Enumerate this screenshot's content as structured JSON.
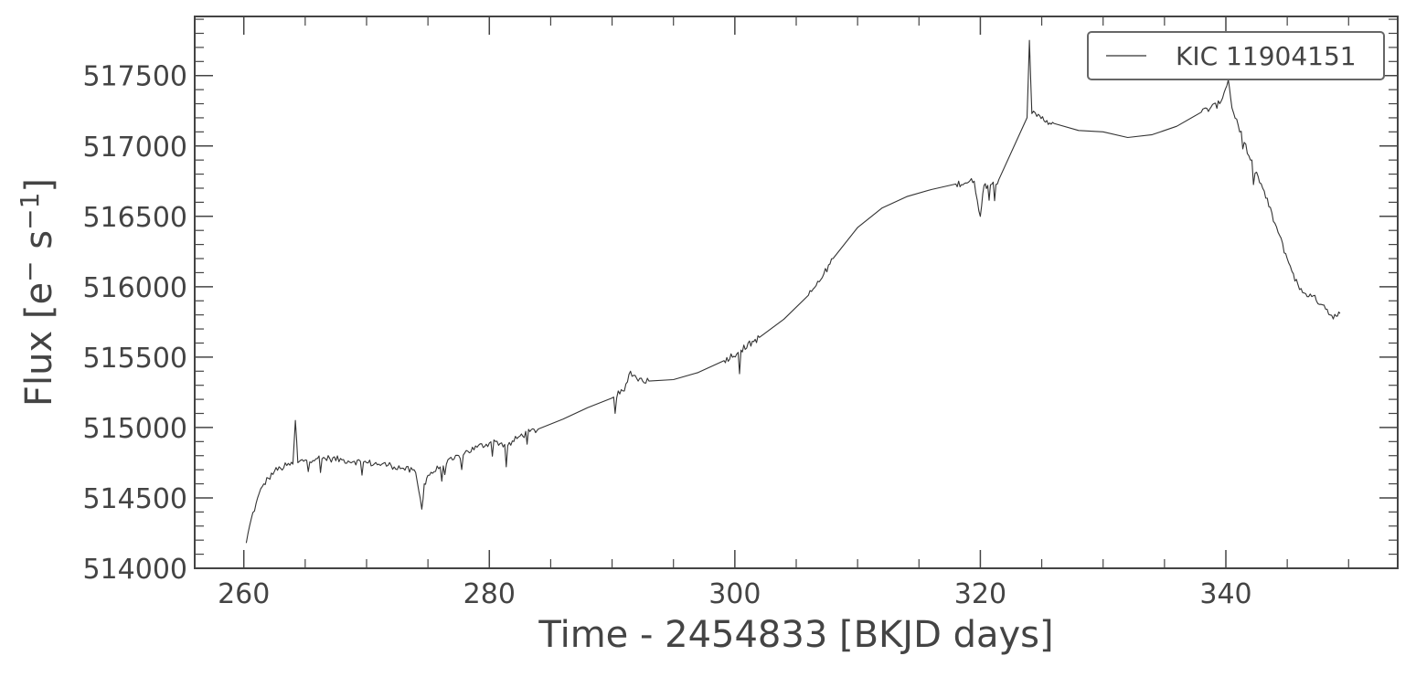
{
  "chart_data": {
    "type": "line",
    "title": "",
    "xlabel": "Time - 2454833 [BKJD days]",
    "ylabel_parts": {
      "base": "Flux [e",
      "sup1": "−",
      "mid": " s",
      "sup2": "−1",
      "end": "]"
    },
    "xlim": [
      256,
      354
    ],
    "ylim": [
      514000,
      517920
    ],
    "x_ticks": [
      260,
      280,
      300,
      320,
      340
    ],
    "x_tick_labels": [
      "260",
      "280",
      "300",
      "320",
      "340"
    ],
    "y_ticks": [
      514000,
      514500,
      515000,
      515500,
      516000,
      516500,
      517000,
      517500
    ],
    "y_tick_labels": [
      "514000",
      "514500",
      "515000",
      "515500",
      "516000",
      "516500",
      "517000",
      "517500"
    ],
    "grid": false,
    "legend_position": "top-right",
    "line_color": "#333333",
    "axis_color": "#444444",
    "series": [
      {
        "name": "KIC 11904151",
        "x": [
          260.2,
          260.6,
          261.0,
          261.5,
          262.0,
          262.5,
          263.0,
          263.5,
          264.0,
          264.2,
          264.4,
          265.0,
          266.0,
          267.0,
          268.0,
          269.0,
          270.0,
          271.0,
          272.0,
          273.0,
          274.0,
          274.5,
          274.7,
          275.0,
          276.0,
          277.0,
          278.0,
          279.0,
          280.0,
          280.5,
          281.5,
          282.5,
          284.0,
          286.0,
          288.0,
          290.0,
          291.0,
          291.5,
          292.0,
          293.0,
          295.0,
          297.0,
          299.0,
          300.5,
          302.0,
          304.0,
          306.0,
          307.0,
          308.0,
          310.0,
          312.0,
          314.0,
          316.0,
          318.0,
          319.5,
          320.0,
          320.3,
          320.6,
          321.5,
          323.8,
          324.0,
          324.2,
          324.6,
          326.0,
          328.0,
          330.0,
          332.0,
          334.0,
          336.0,
          338.0,
          339.5,
          340.2,
          340.5,
          341.0,
          342.0,
          343.0,
          344.0,
          345.0,
          346.0,
          347.0,
          348.0,
          348.5,
          349.0,
          349.3
        ],
        "y": [
          514180,
          514350,
          514460,
          514580,
          514640,
          514690,
          514710,
          514730,
          514740,
          515050,
          514750,
          514770,
          514780,
          514780,
          514770,
          514760,
          514750,
          514740,
          514730,
          514710,
          514680,
          514420,
          514600,
          514660,
          514720,
          514770,
          514820,
          514860,
          514890,
          514900,
          514870,
          514940,
          514990,
          515060,
          515140,
          515210,
          515260,
          515400,
          515350,
          515330,
          515340,
          515390,
          515470,
          515550,
          515640,
          515770,
          515940,
          516050,
          516200,
          516420,
          516560,
          516640,
          516690,
          516730,
          516750,
          516500,
          516720,
          516720,
          516760,
          517200,
          517750,
          517230,
          517210,
          517160,
          517110,
          517100,
          517060,
          517080,
          517140,
          517240,
          517300,
          517470,
          517270,
          517150,
          516900,
          516700,
          516450,
          516200,
          515980,
          515930,
          515870,
          515800,
          515790,
          515810
        ]
      }
    ]
  }
}
